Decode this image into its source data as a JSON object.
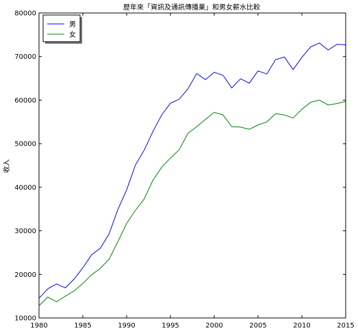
{
  "chart_data": {
    "type": "line",
    "title": "歷年來「資訊及通訊傳播業」和男女薪水比較",
    "xlabel": "",
    "ylabel": "收入",
    "xlim": [
      1980,
      2015
    ],
    "ylim": [
      10000,
      80000
    ],
    "xticks": [
      1980,
      1985,
      1990,
      1995,
      2000,
      2005,
      2010,
      2015
    ],
    "yticks": [
      10000,
      20000,
      30000,
      40000,
      50000,
      60000,
      70000,
      80000
    ],
    "legend_position": "top-left",
    "grid": false,
    "x": [
      1980,
      1981,
      1982,
      1983,
      1984,
      1985,
      1986,
      1987,
      1988,
      1989,
      1990,
      1991,
      1992,
      1993,
      1994,
      1995,
      1996,
      1997,
      1998,
      1999,
      2000,
      2001,
      2002,
      2003,
      2004,
      2005,
      2006,
      2007,
      2008,
      2009,
      2010,
      2011,
      2012,
      2013,
      2014,
      2015
    ],
    "series": [
      {
        "name": "男",
        "color": "#0000ff",
        "values": [
          14500,
          16700,
          17800,
          16900,
          18900,
          21500,
          24500,
          26000,
          29300,
          34900,
          39400,
          45100,
          48500,
          52800,
          56600,
          59300,
          60200,
          62600,
          66100,
          64700,
          66400,
          65700,
          62800,
          64900,
          63900,
          66700,
          66000,
          69300,
          69900,
          67000,
          69800,
          72200,
          73100,
          71500,
          72800,
          72700
        ]
      },
      {
        "name": "女",
        "color": "#008000",
        "values": [
          12800,
          14800,
          13700,
          15000,
          16200,
          17900,
          19900,
          21400,
          23500,
          27500,
          31700,
          34700,
          37300,
          41600,
          44600,
          46700,
          48600,
          52400,
          53900,
          55600,
          57200,
          56600,
          53900,
          53800,
          53300,
          54300,
          55000,
          56900,
          56600,
          55900,
          57900,
          59500,
          60000,
          58900,
          59200,
          59700
        ]
      }
    ]
  }
}
